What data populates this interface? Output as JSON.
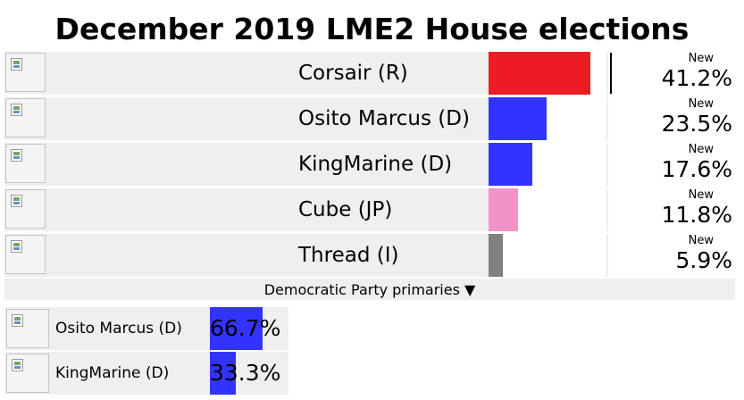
{
  "title": "December 2019 LME2 House elections",
  "candidates": [
    {
      "name": "Corsair (R)",
      "status": "New",
      "percent": "41.2%",
      "value": 41.2,
      "color": "#ec1c24"
    },
    {
      "name": "Osito Marcus (D)",
      "status": "New",
      "percent": "23.5%",
      "value": 23.5,
      "color": "#3333ff"
    },
    {
      "name": "KingMarine (D)",
      "status": "New",
      "percent": "17.6%",
      "value": 17.6,
      "color": "#3333ff"
    },
    {
      "name": "Cube (JP)",
      "status": "New",
      "percent": "11.8%",
      "value": 11.8,
      "color": "#f093c6"
    },
    {
      "name": "Thread (I)",
      "status": "New",
      "percent": "5.9%",
      "value": 5.9,
      "color": "#808080"
    }
  ],
  "primaries": {
    "label": "Democratic Party primaries ▼",
    "candidates": [
      {
        "name": "Osito Marcus (D)",
        "percent": "66.7%",
        "value": 66.7,
        "color": "#3333ff"
      },
      {
        "name": "KingMarine (D)",
        "percent": "33.3%",
        "value": 33.3,
        "color": "#3333ff"
      }
    ]
  }
}
